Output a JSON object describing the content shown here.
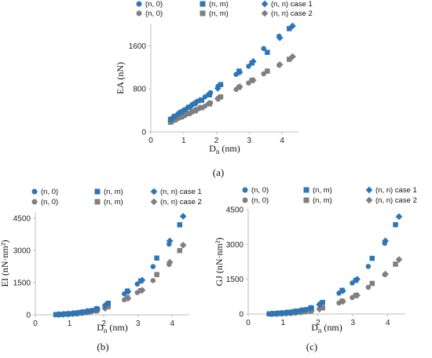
{
  "colors": {
    "blue": "#2E75B6",
    "gray": "#7F7F7F",
    "axis": "#bfbfbf"
  },
  "legend_labels": [
    "(n, 0)",
    "(n, m)",
    "(n, n) case 1",
    "(n, 0)",
    "(n, m)",
    "(n, n) case 2"
  ],
  "legend_markers": [
    "circle",
    "square",
    "diamond",
    "circle",
    "square",
    "diamond"
  ],
  "legend_colors": [
    "blue",
    "blue",
    "blue",
    "gray",
    "gray",
    "gray"
  ],
  "chart_data": [
    {
      "type": "scatter",
      "caption": "(a)",
      "xlabel": "D",
      "xlabel_sub": "n",
      "xlabel_unit": " (nm)",
      "ylabel": "EA (nN)",
      "xlim": [
        0,
        4.5
      ],
      "ylim": [
        0,
        2000
      ],
      "xticks": [
        0,
        1,
        2,
        3,
        4
      ],
      "yticks": [
        0,
        800,
        1600
      ],
      "series": [
        {
          "name": "(n, 0)",
          "marker": "circle",
          "color": "blue",
          "x": [
            0.63,
            0.87,
            1.02,
            1.26,
            1.42,
            1.65,
            1.82,
            2.05,
            2.6,
            2.98,
            3.44,
            3.91
          ],
          "y": [
            250,
            350,
            410,
            510,
            570,
            650,
            730,
            850,
            1070,
            1220,
            1550,
            1780
          ]
        },
        {
          "name": "(n, m)",
          "marker": "square",
          "color": "blue",
          "x": [
            0.6,
            0.72,
            0.93,
            1.16,
            1.35,
            1.55,
            1.79,
            2.13,
            2.69,
            3.08,
            3.55,
            4.22
          ],
          "y": [
            230,
            290,
            370,
            460,
            530,
            590,
            690,
            880,
            1130,
            1280,
            1480,
            1920
          ]
        },
        {
          "name": "(n, n) case 1",
          "marker": "diamond",
          "color": "blue",
          "x": [
            0.68,
            0.82,
            0.96,
            1.09,
            1.23,
            1.36,
            1.5,
            1.77,
            2.04,
            2.71,
            3.12,
            3.93,
            4.32
          ],
          "y": [
            270,
            330,
            380,
            430,
            480,
            540,
            590,
            700,
            810,
            1110,
            1310,
            1750,
            1970
          ]
        },
        {
          "name": "(n, 0)",
          "marker": "circle",
          "color": "gray",
          "x": [
            0.63,
            0.87,
            1.02,
            1.26,
            1.42,
            1.65,
            1.82,
            2.05,
            2.6,
            2.98,
            3.44,
            3.91
          ],
          "y": [
            190,
            260,
            300,
            370,
            420,
            480,
            540,
            610,
            790,
            910,
            1080,
            1240
          ]
        },
        {
          "name": "(n, m)",
          "marker": "square",
          "color": "gray",
          "x": [
            0.6,
            0.72,
            0.93,
            1.16,
            1.35,
            1.55,
            1.79,
            2.13,
            2.69,
            3.08,
            3.55,
            4.22
          ],
          "y": [
            180,
            220,
            280,
            340,
            390,
            450,
            520,
            650,
            830,
            960,
            1130,
            1350
          ]
        },
        {
          "name": "(n, n) case 2",
          "marker": "diamond",
          "color": "gray",
          "x": [
            0.68,
            0.82,
            0.96,
            1.09,
            1.23,
            1.36,
            1.5,
            1.77,
            2.04,
            2.71,
            3.12,
            3.93,
            4.32
          ],
          "y": [
            210,
            250,
            290,
            330,
            370,
            410,
            450,
            530,
            620,
            840,
            960,
            1250,
            1400
          ]
        }
      ]
    },
    {
      "type": "scatter",
      "caption": "(b)",
      "xlabel": "D",
      "xlabel_sub": "n",
      "xlabel_unit": " (nm)",
      "ylabel": "EI (nN·nm²)",
      "xlim": [
        0,
        4.5
      ],
      "ylim": [
        0,
        4800
      ],
      "xticks": [
        0,
        1,
        2,
        3,
        4
      ],
      "yticks": [
        0,
        1500,
        3000,
        4500
      ],
      "series": [
        {
          "name": "(n, 0)",
          "marker": "circle",
          "color": "blue",
          "x": [
            0.63,
            0.87,
            1.02,
            1.26,
            1.42,
            1.65,
            1.82,
            2.05,
            2.6,
            2.98,
            3.44,
            3.91
          ],
          "y": [
            15,
            35,
            55,
            90,
            140,
            210,
            290,
            460,
            980,
            1440,
            2250,
            3300
          ]
        },
        {
          "name": "(n, m)",
          "marker": "square",
          "color": "blue",
          "x": [
            0.6,
            0.72,
            0.93,
            1.16,
            1.35,
            1.55,
            1.79,
            2.13,
            2.69,
            3.08,
            3.55,
            4.22
          ],
          "y": [
            12,
            22,
            45,
            80,
            120,
            180,
            270,
            540,
            1110,
            1580,
            2650,
            4200
          ]
        },
        {
          "name": "(n, n) case 1",
          "marker": "diamond",
          "color": "blue",
          "x": [
            0.68,
            0.82,
            0.96,
            1.09,
            1.23,
            1.36,
            1.5,
            1.77,
            2.04,
            2.71,
            3.12,
            3.93,
            4.32
          ],
          "y": [
            18,
            30,
            48,
            65,
            90,
            120,
            160,
            270,
            430,
            1080,
            1620,
            3450,
            4600
          ]
        },
        {
          "name": "(n, 0)",
          "marker": "circle",
          "color": "gray",
          "x": [
            0.63,
            0.87,
            1.02,
            1.26,
            1.42,
            1.65,
            1.82,
            2.05,
            2.6,
            2.98,
            3.44,
            3.91
          ],
          "y": [
            10,
            25,
            40,
            65,
            100,
            150,
            200,
            320,
            700,
            1040,
            1600,
            2350
          ]
        },
        {
          "name": "(n, m)",
          "marker": "square",
          "color": "gray",
          "x": [
            0.6,
            0.72,
            0.93,
            1.16,
            1.35,
            1.55,
            1.79,
            2.13,
            2.69,
            3.08,
            3.55,
            4.22
          ],
          "y": [
            8,
            15,
            30,
            55,
            85,
            125,
            190,
            380,
            790,
            1130,
            1880,
            3000
          ]
        },
        {
          "name": "(n, n) case 2",
          "marker": "diamond",
          "color": "gray",
          "x": [
            0.68,
            0.82,
            0.96,
            1.09,
            1.23,
            1.36,
            1.5,
            1.77,
            2.04,
            2.71,
            3.12,
            3.93,
            4.32
          ],
          "y": [
            12,
            22,
            35,
            48,
            65,
            85,
            115,
            190,
            300,
            770,
            1150,
            2450,
            3250
          ]
        }
      ]
    },
    {
      "type": "scatter",
      "caption": "(c)",
      "xlabel": "D",
      "xlabel_sub": "n",
      "xlabel_unit": " (nm)",
      "ylabel": "GJ (nN·nm²)",
      "xlim": [
        0,
        4.5
      ],
      "ylim": [
        0,
        4500
      ],
      "xticks": [
        0,
        1,
        2,
        3,
        4
      ],
      "yticks": [
        0,
        1500,
        3000,
        4500
      ],
      "series": [
        {
          "name": "(n, 0)",
          "marker": "circle",
          "color": "blue",
          "x": [
            0.63,
            0.87,
            1.02,
            1.26,
            1.42,
            1.65,
            1.82,
            2.05,
            2.6,
            2.98,
            3.44,
            3.91
          ],
          "y": [
            10,
            30,
            50,
            85,
            130,
            200,
            280,
            440,
            900,
            1340,
            2050,
            3050
          ]
        },
        {
          "name": "(n, m)",
          "marker": "square",
          "color": "blue",
          "x": [
            0.6,
            0.72,
            0.93,
            1.16,
            1.35,
            1.55,
            1.79,
            2.13,
            2.69,
            3.08,
            3.55,
            4.22
          ],
          "y": [
            8,
            18,
            40,
            75,
            115,
            170,
            255,
            500,
            1020,
            1450,
            2400,
            3850
          ]
        },
        {
          "name": "(n, n) case 1",
          "marker": "diamond",
          "color": "blue",
          "x": [
            0.68,
            0.82,
            0.96,
            1.09,
            1.23,
            1.36,
            1.5,
            1.77,
            2.04,
            2.71,
            3.12,
            3.93,
            4.32
          ],
          "y": [
            12,
            25,
            42,
            60,
            82,
            110,
            150,
            250,
            400,
            1000,
            1500,
            3150,
            4200
          ]
        },
        {
          "name": "(n, 0)",
          "marker": "circle",
          "color": "gray",
          "x": [
            0.63,
            0.87,
            1.02,
            1.26,
            1.42,
            1.65,
            1.82,
            2.05,
            2.6,
            2.98,
            3.44,
            3.91
          ],
          "y": [
            5,
            15,
            25,
            45,
            70,
            105,
            150,
            230,
            480,
            710,
            1150,
            1700
          ]
        },
        {
          "name": "(n, m)",
          "marker": "square",
          "color": "gray",
          "x": [
            0.6,
            0.72,
            0.93,
            1.16,
            1.35,
            1.55,
            1.79,
            2.13,
            2.69,
            3.08,
            3.55,
            4.22
          ],
          "y": [
            4,
            10,
            20,
            38,
            60,
            90,
            135,
            265,
            560,
            800,
            1320,
            2150
          ]
        },
        {
          "name": "(n, n) case 2",
          "marker": "diamond",
          "color": "gray",
          "x": [
            0.68,
            0.82,
            0.96,
            1.09,
            1.23,
            1.36,
            1.5,
            1.77,
            2.04,
            2.71,
            3.12,
            3.93,
            4.32
          ],
          "y": [
            6,
            12,
            20,
            30,
            42,
            58,
            78,
            130,
            210,
            540,
            810,
            1720,
            2350
          ]
        }
      ]
    }
  ]
}
